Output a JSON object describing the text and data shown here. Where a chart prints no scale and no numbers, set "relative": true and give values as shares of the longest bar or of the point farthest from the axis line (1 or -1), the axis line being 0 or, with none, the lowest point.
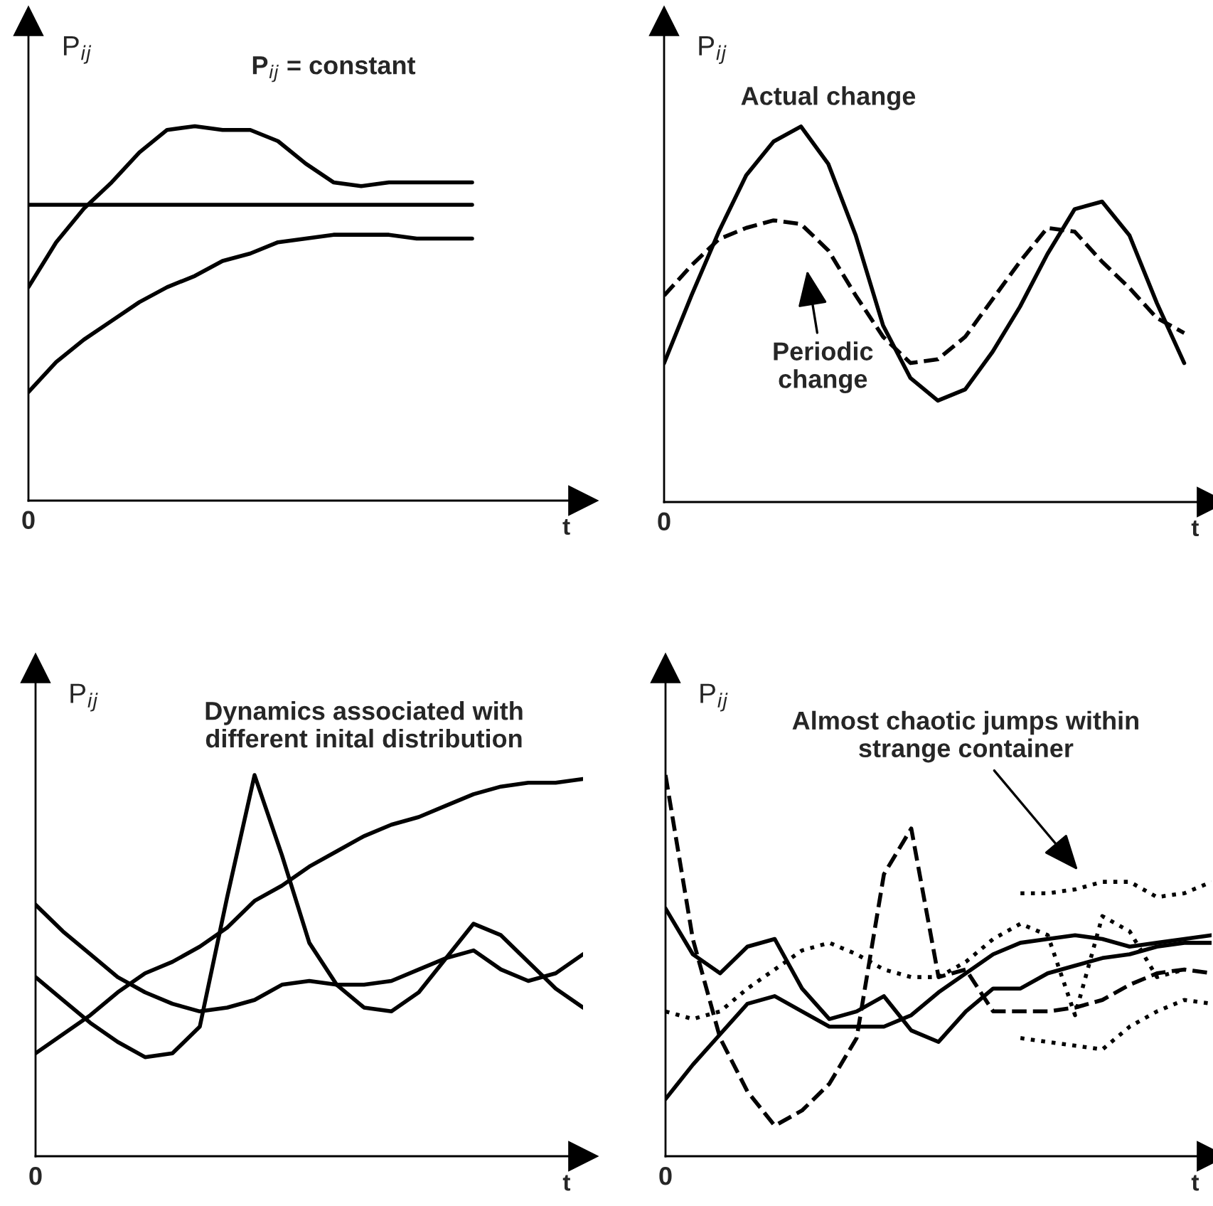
{
  "chart_data": [
    {
      "type": "line",
      "relative": true,
      "ylabel": "P$_{ij}$",
      "xlabel": "t",
      "categories": [
        null,
        null,
        null,
        null,
        null,
        null,
        null,
        null,
        null,
        null,
        null,
        null,
        null,
        null,
        null,
        null,
        null,
        null,
        null,
        null,
        null
      ],
      "annotations": [
        "P$_{ij}$ = constant",
        "0"
      ],
      "series": [
        {
          "color": "#000000",
          "line_style": "solid",
          "values": [
            0.57,
            0.69,
            0.78,
            0.85,
            0.93,
            0.99,
            1.0,
            0.99,
            0.99,
            0.96,
            0.9,
            0.85,
            0.84,
            0.85,
            0.85,
            0.85,
            0.85,
            null,
            null,
            null,
            null
          ]
        },
        {
          "color": "#000000",
          "line_style": "solid",
          "values": [
            0.79,
            0.79,
            0.79,
            0.79,
            0.79,
            0.79,
            0.79,
            0.79,
            0.79,
            0.79,
            0.79,
            0.79,
            0.79,
            0.79,
            0.79,
            0.79,
            0.79,
            null,
            null,
            null,
            null
          ]
        },
        {
          "color": "#000000",
          "line_style": "solid",
          "values": [
            0.29,
            0.37,
            0.43,
            0.48,
            0.53,
            0.57,
            0.6,
            0.64,
            0.66,
            0.69,
            0.7,
            0.71,
            0.71,
            0.71,
            0.7,
            0.7,
            0.7,
            null,
            null,
            null,
            null
          ]
        }
      ]
    },
    {
      "type": "line",
      "relative": true,
      "ylabel": "P$_{ij}$",
      "xlabel": "t",
      "categories": [
        null,
        null,
        null,
        null,
        null,
        null,
        null,
        null,
        null,
        null,
        null,
        null,
        null,
        null,
        null,
        null,
        null,
        null,
        null,
        null,
        null
      ],
      "annotations": [
        "Actual change",
        "Periodic\nchange",
        "0"
      ],
      "series": [
        {
          "color": "#000000",
          "line_style": "solid",
          "values": [
            0.37,
            0.55,
            0.72,
            0.87,
            0.96,
            1.0,
            0.9,
            0.71,
            0.47,
            0.33,
            0.27,
            0.3,
            0.4,
            0.52,
            0.66,
            0.78,
            0.8,
            0.71,
            0.53,
            0.37,
            null
          ]
        },
        {
          "color": "#000000",
          "line_style": "dashed",
          "values": [
            0.55,
            0.63,
            0.7,
            0.73,
            0.75,
            0.74,
            0.67,
            0.55,
            0.44,
            0.37,
            0.38,
            0.44,
            0.54,
            0.64,
            0.73,
            0.72,
            0.64,
            0.57,
            0.49,
            0.45,
            null
          ]
        }
      ]
    },
    {
      "type": "line",
      "relative": true,
      "ylabel": "P$_{ij}$",
      "xlabel": "t",
      "categories": [
        null,
        null,
        null,
        null,
        null,
        null,
        null,
        null,
        null,
        null,
        null,
        null,
        null,
        null,
        null,
        null,
        null,
        null,
        null,
        null,
        null
      ],
      "annotations": [
        "Dynamics associated with\ndifferent inital distribution",
        "0"
      ],
      "series": [
        {
          "color": "#000000",
          "line_style": "solid",
          "values": [
            0.27,
            0.32,
            0.37,
            0.43,
            0.48,
            0.51,
            0.55,
            0.6,
            0.67,
            0.71,
            0.76,
            0.8,
            0.84,
            0.87,
            0.89,
            0.92,
            0.95,
            0.97,
            0.98,
            0.98,
            0.99
          ]
        },
        {
          "color": "#000000",
          "line_style": "solid",
          "values": [
            0.66,
            0.59,
            0.53,
            0.47,
            0.43,
            0.4,
            0.38,
            0.39,
            0.41,
            0.45,
            0.46,
            0.45,
            0.45,
            0.46,
            0.49,
            0.52,
            0.54,
            0.49,
            0.46,
            0.48,
            0.53
          ]
        },
        {
          "color": "#000000",
          "line_style": "solid",
          "values": [
            0.47,
            0.41,
            0.35,
            0.3,
            0.26,
            0.27,
            0.34,
            0.68,
            1.0,
            0.79,
            0.56,
            0.45,
            0.39,
            0.38,
            0.43,
            0.52,
            0.61,
            0.58,
            0.51,
            0.44,
            0.39
          ]
        }
      ]
    },
    {
      "type": "line",
      "relative": true,
      "ylabel": "P$_{ij}$",
      "xlabel": "t",
      "categories": [
        null,
        null,
        null,
        null,
        null,
        null,
        null,
        null,
        null,
        null,
        null,
        null,
        null,
        null,
        null,
        null,
        null,
        null,
        null,
        null,
        null
      ],
      "annotations": [
        "Almost chaotic jumps within\nstrange container",
        "0"
      ],
      "series": [
        {
          "color": "#000000",
          "line_style": "solid",
          "values": [
            0.65,
            0.53,
            0.48,
            0.55,
            0.57,
            0.44,
            0.36,
            0.38,
            0.42,
            0.33,
            0.3,
            0.38,
            0.44,
            0.44,
            0.48,
            0.5,
            0.52,
            0.53,
            0.55,
            0.56,
            0.56
          ]
        },
        {
          "color": "#000000",
          "line_style": "solid",
          "values": [
            0.15,
            0.24,
            0.32,
            0.4,
            0.42,
            0.38,
            0.34,
            0.34,
            0.34,
            0.37,
            0.43,
            0.48,
            0.53,
            0.56,
            0.57,
            0.58,
            0.57,
            0.55,
            0.56,
            0.57,
            0.58
          ]
        },
        {
          "color": "#000000",
          "line_style": "dotted",
          "values": [
            0.38,
            0.36,
            0.38,
            0.44,
            0.49,
            0.54,
            0.56,
            0.53,
            0.49,
            0.47,
            0.47,
            0.51,
            0.57,
            0.61,
            0.58,
            0.37,
            0.63,
            0.59,
            0.47,
            0.49,
            null
          ]
        },
        {
          "color": "#000000",
          "line_style": "dashed",
          "values": [
            1.0,
            0.57,
            0.31,
            0.17,
            0.08,
            0.12,
            0.19,
            0.31,
            0.74,
            0.86,
            0.47,
            0.49,
            0.38,
            0.38,
            0.38,
            0.39,
            0.41,
            0.45,
            0.48,
            0.49,
            0.48
          ]
        },
        {
          "color": "#000000",
          "line_style": "dotted",
          "values": [
            null,
            null,
            null,
            null,
            null,
            null,
            null,
            null,
            null,
            null,
            null,
            null,
            null,
            0.69,
            0.69,
            0.7,
            0.72,
            0.72,
            0.68,
            0.69,
            0.72
          ]
        },
        {
          "color": "#000000",
          "line_style": "dotted",
          "values": [
            null,
            null,
            null,
            null,
            null,
            null,
            null,
            null,
            null,
            null,
            null,
            null,
            null,
            0.31,
            0.3,
            0.29,
            0.28,
            0.34,
            0.38,
            0.41,
            0.4
          ]
        }
      ]
    }
  ]
}
